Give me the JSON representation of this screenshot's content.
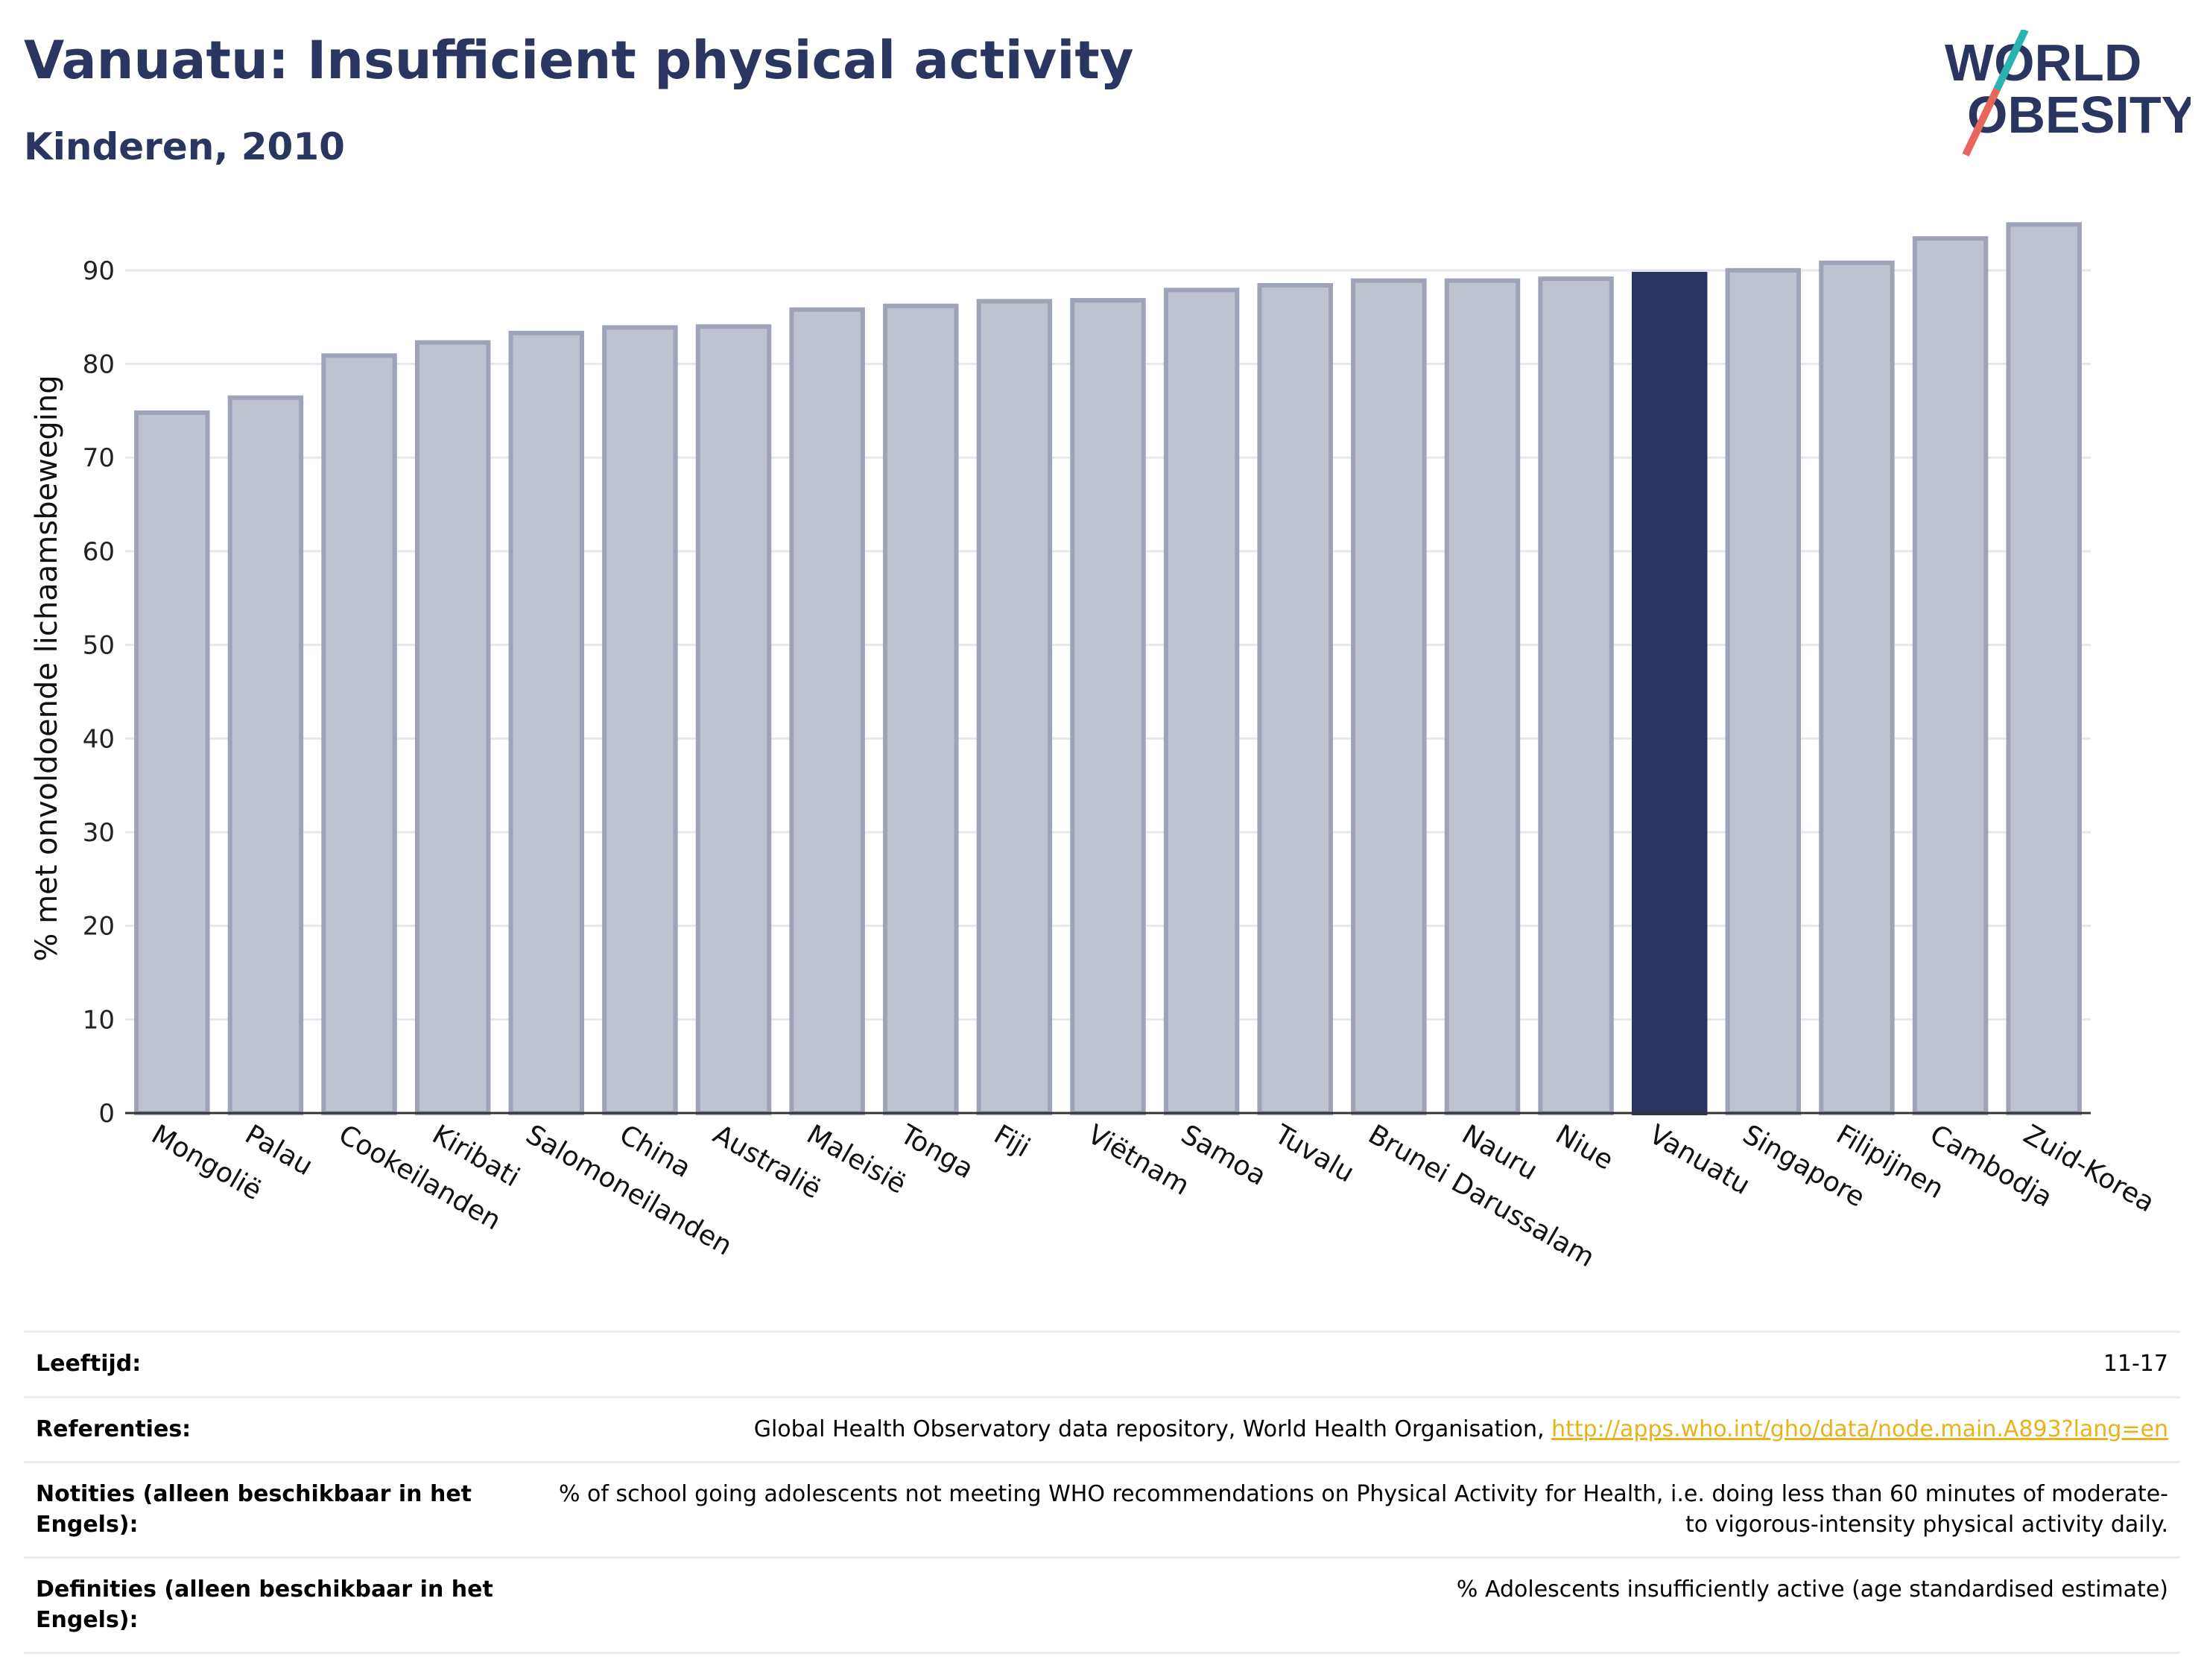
{
  "header": {
    "title": "Vanuatu: Insufficient physical activity",
    "subtitle": "Kinderen, 2010"
  },
  "logo": {
    "line1": "WORLD",
    "line2": "OBESITY",
    "colors": {
      "text": "#2a3560",
      "slash_teal": "#2bb3b1",
      "slash_red": "#e8675a"
    }
  },
  "chart_data": {
    "type": "bar",
    "ylabel": "% met onvoldoende lichaamsbeweging",
    "ylim": [
      0,
      95
    ],
    "yticks": [
      0,
      10,
      20,
      30,
      40,
      50,
      60,
      70,
      80,
      90
    ],
    "grid": true,
    "categories": [
      "Mongolië",
      "Palau",
      "Cookeilanden",
      "Kiribati",
      "Salomoneilanden",
      "China",
      "Australië",
      "Maleisië",
      "Tonga",
      "Fiji",
      "Viëtnam",
      "Samoa",
      "Tuvalu",
      "Brunei Darussalam",
      "Nauru",
      "Niue",
      "Vanuatu",
      "Singapore",
      "Filipijnen",
      "Cambodja",
      "Zuid-Korea"
    ],
    "values": [
      74.8,
      76.4,
      80.9,
      82.3,
      83.3,
      83.9,
      84.0,
      85.8,
      86.2,
      86.7,
      86.8,
      87.9,
      88.4,
      88.9,
      88.9,
      89.1,
      89.6,
      90.0,
      90.8,
      93.4,
      94.9
    ],
    "highlight": "Vanuatu",
    "colors": {
      "bar": "#bfc2cf",
      "bar_edge": "#9ea3b8",
      "highlight": "#2a3560",
      "grid": "#e6e8ee",
      "axis": "#333333"
    }
  },
  "table": {
    "rows": [
      {
        "label": "Leeftijd:",
        "value": "11-17"
      },
      {
        "label": "Referenties:",
        "value": "Global Health Observatory data repository, World Health Organisation, ",
        "link": "http://apps.who.int/gho/data/node.main.A893?lang=en"
      },
      {
        "label": "Notities (alleen beschikbaar in het Engels):",
        "value": "% of school going adolescents not meeting WHO recommendations on Physical Activity for Health, i.e. doing less than 60 minutes of moderate- to vigorous-intensity physical activity daily."
      },
      {
        "label": "Definities (alleen beschikbaar in het Engels):",
        "value": "% Adolescents insufficiently active (age standardised estimate)"
      }
    ]
  }
}
